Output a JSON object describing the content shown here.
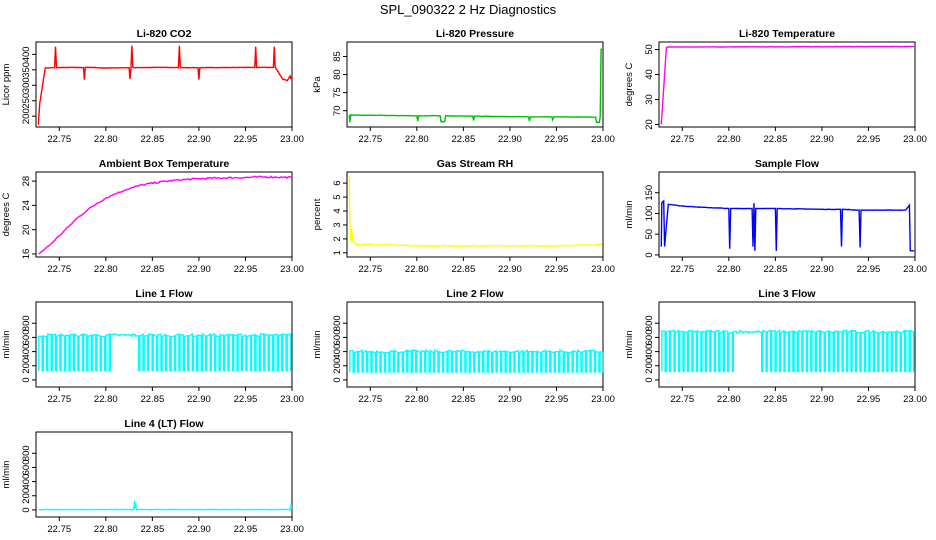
{
  "page_title": "SPL_090322  2 Hz Diagnostics",
  "colors": {
    "red": "#ff0000",
    "green": "#00c000",
    "magenta": "#ff00ff",
    "yellow": "#ffff00",
    "blue": "#0000ff",
    "cyan": "#00ffff",
    "axis": "#000000"
  },
  "chart_data": [
    {
      "type": "line",
      "title": "Li-820 CO2",
      "ylabel": "Licor ppm",
      "color": "#ff0000",
      "xlim": [
        22.725,
        23.0
      ],
      "ylim": [
        165,
        440
      ],
      "xticks": [
        "22.75",
        "22.80",
        "22.85",
        "22.90",
        "22.95",
        "23.00"
      ],
      "yticks": [
        "200",
        "250",
        "300",
        "350",
        "400"
      ],
      "series": [
        {
          "name": "CO2",
          "x": [
            22.7275,
            22.729,
            22.731,
            22.735,
            22.745,
            22.746,
            22.747,
            22.765,
            22.776,
            22.777,
            22.778,
            22.8,
            22.825,
            22.826,
            22.827,
            22.828,
            22.829,
            22.83,
            22.86,
            22.878,
            22.879,
            22.88,
            22.899,
            22.9,
            22.901,
            22.96,
            22.961,
            22.962,
            22.98,
            22.981,
            22.982,
            22.99,
            22.995,
            22.998,
            22.999
          ],
          "y": [
            172,
            240,
            280,
            356,
            357,
            425,
            357,
            358,
            357,
            318,
            358,
            356,
            357,
            320,
            358,
            428,
            358,
            357,
            358,
            357,
            428,
            357,
            357,
            318,
            357,
            358,
            425,
            358,
            358,
            425,
            358,
            320,
            315,
            330,
            320
          ]
        }
      ]
    },
    {
      "type": "line",
      "title": "Li-820 Pressure",
      "ylabel": "kPa",
      "color": "#00c000",
      "xlim": [
        22.725,
        23.0
      ],
      "ylim": [
        65.5,
        89
      ],
      "xticks": [
        "22.75",
        "22.80",
        "22.85",
        "22.90",
        "22.95",
        "23.00"
      ],
      "yticks": [
        "70",
        "75",
        "80",
        "85"
      ],
      "series": [
        {
          "name": "Pressure",
          "x": [
            22.7275,
            22.728,
            22.729,
            22.73,
            22.8,
            22.801,
            22.802,
            22.825,
            22.826,
            22.83,
            22.831,
            22.86,
            22.861,
            22.862,
            22.92,
            22.921,
            22.922,
            22.945,
            22.946,
            22.947,
            22.992,
            22.993,
            22.996,
            22.997,
            22.998,
            22.999
          ],
          "y": [
            68.8,
            66.8,
            68.9,
            68.8,
            68.6,
            67.2,
            68.6,
            68.6,
            67.0,
            67.0,
            68.6,
            68.5,
            67.3,
            68.5,
            68.3,
            67.2,
            68.3,
            68.3,
            67.5,
            68.3,
            68.2,
            66.8,
            66.8,
            68.3,
            87.0,
            87.0
          ]
        }
      ]
    },
    {
      "type": "line",
      "title": "Li-820 Temperature",
      "ylabel": "degrees C",
      "color": "#ff00ff",
      "xlim": [
        22.725,
        23.0
      ],
      "ylim": [
        19,
        53
      ],
      "xticks": [
        "22.75",
        "22.80",
        "22.85",
        "22.90",
        "22.95",
        "23.00"
      ],
      "yticks": [
        "20",
        "30",
        "40",
        "50"
      ],
      "series": [
        {
          "name": "Temperature",
          "x": [
            22.7275,
            22.733,
            22.735,
            22.999
          ],
          "y": [
            20,
            50.8,
            51,
            51.2
          ]
        }
      ]
    },
    {
      "type": "line",
      "title": "Ambient Box Temperature",
      "ylabel": "degrees C",
      "color": "#ff00ff",
      "xlim": [
        22.725,
        23.0
      ],
      "ylim": [
        15.5,
        29.5
      ],
      "xticks": [
        "22.75",
        "22.80",
        "22.85",
        "22.90",
        "22.95",
        "23.00"
      ],
      "yticks": [
        "16",
        "20",
        "24",
        "28"
      ],
      "series": [
        {
          "name": "Box Temperature",
          "x": [
            22.728,
            22.74,
            22.75,
            22.76,
            22.77,
            22.78,
            22.79,
            22.8,
            22.81,
            22.82,
            22.83,
            22.84,
            22.86,
            22.88,
            22.9,
            22.92,
            22.95,
            22.97,
            22.999
          ],
          "y": [
            16.0,
            17.5,
            19.0,
            20.5,
            22.0,
            23.2,
            24.3,
            25.2,
            25.9,
            26.5,
            27.0,
            27.4,
            27.9,
            28.2,
            28.4,
            28.5,
            28.6,
            28.7,
            28.6
          ]
        }
      ]
    },
    {
      "type": "line",
      "title": "Gas Stream RH",
      "ylabel": "percent",
      "color": "#ffff00",
      "xlim": [
        22.725,
        23.0
      ],
      "ylim": [
        0.7,
        6.8
      ],
      "xticks": [
        "22.75",
        "22.80",
        "22.85",
        "22.90",
        "22.95",
        "23.00"
      ],
      "yticks": [
        "1",
        "2",
        "3",
        "4",
        "5",
        "6"
      ],
      "series": [
        {
          "name": "RH",
          "x": [
            22.7275,
            22.728,
            22.729,
            22.73,
            22.731,
            22.735,
            22.75,
            22.8,
            22.85,
            22.9,
            22.95,
            22.999
          ],
          "y": [
            6.5,
            3.5,
            1.8,
            2.7,
            1.9,
            1.6,
            1.6,
            1.5,
            1.5,
            1.5,
            1.5,
            1.6
          ]
        }
      ]
    },
    {
      "type": "line",
      "title": "Sample Flow",
      "ylabel": "ml/min",
      "color": "#0000ff",
      "xlim": [
        22.725,
        23.0
      ],
      "ylim": [
        -5,
        200
      ],
      "xticks": [
        "22.75",
        "22.80",
        "22.85",
        "22.90",
        "22.95",
        "23.00"
      ],
      "yticks": [
        "0",
        "50",
        "100",
        "150"
      ],
      "series": [
        {
          "name": "Flow",
          "x": [
            22.7275,
            22.728,
            22.729,
            22.73,
            22.731,
            22.735,
            22.75,
            22.77,
            22.8,
            22.801,
            22.802,
            22.825,
            22.826,
            22.827,
            22.828,
            22.829,
            22.85,
            22.851,
            22.852,
            22.9,
            22.92,
            22.921,
            22.922,
            22.94,
            22.941,
            22.942,
            22.96,
            22.99,
            22.994,
            22.995,
            22.996,
            22.999
          ],
          "y": [
            20,
            125,
            128,
            130,
            20,
            122,
            118,
            115,
            112,
            15,
            112,
            112,
            20,
            125,
            10,
            112,
            112,
            10,
            112,
            110,
            110,
            20,
            110,
            108,
            18,
            108,
            108,
            108,
            120,
            10,
            10,
            10
          ]
        }
      ]
    },
    {
      "type": "line",
      "title": "Line 1 Flow",
      "ylabel": "ml/min",
      "color": "#00ffff",
      "xlim": [
        22.725,
        23.0
      ],
      "ylim": [
        -100,
        1100
      ],
      "xticks": [
        "22.75",
        "22.80",
        "22.85",
        "22.90",
        "22.95",
        "23.00"
      ],
      "yticks": [
        "0",
        "200",
        "400",
        "600",
        "800"
      ],
      "series": [
        {
          "name": "Line 1",
          "x_range": [
            22.728,
            22.995
          ],
          "high": 630,
          "low": 130,
          "gaps": [
            [
              22.8,
              22.83
            ]
          ]
        }
      ]
    },
    {
      "type": "line",
      "title": "Line 2 Flow",
      "ylabel": "ml/min",
      "color": "#00ffff",
      "xlim": [
        22.725,
        23.0
      ],
      "ylim": [
        -100,
        1100
      ],
      "xticks": [
        "22.75",
        "22.80",
        "22.85",
        "22.90",
        "22.95",
        "23.00"
      ],
      "yticks": [
        "0",
        "200",
        "400",
        "600",
        "800"
      ],
      "series": [
        {
          "name": "Line 2",
          "x_range": [
            22.728,
            22.999
          ],
          "high": 400,
          "low": 110
        }
      ]
    },
    {
      "type": "line",
      "title": "Line 3 Flow",
      "ylabel": "ml/min",
      "color": "#00ffff",
      "xlim": [
        22.725,
        23.0
      ],
      "ylim": [
        -100,
        1100
      ],
      "xticks": [
        "22.75",
        "22.80",
        "22.85",
        "22.90",
        "22.95",
        "23.00"
      ],
      "yticks": [
        "0",
        "200",
        "400",
        "600",
        "800"
      ],
      "series": [
        {
          "name": "Line 3",
          "x_range": [
            22.728,
            22.999
          ],
          "high": 680,
          "low": 120,
          "gaps": [
            [
              22.8,
              22.83
            ]
          ]
        }
      ]
    },
    {
      "type": "line",
      "title": "Line 4 (LT) Flow",
      "ylabel": "ml/min",
      "color": "#00ffff",
      "xlim": [
        22.725,
        23.0
      ],
      "ylim": [
        -100,
        1100
      ],
      "xticks": [
        "22.75",
        "22.80",
        "22.85",
        "22.90",
        "22.95",
        "23.00"
      ],
      "yticks": [
        "0",
        "200",
        "400",
        "600",
        "800"
      ],
      "series": [
        {
          "name": "Line 4",
          "x": [
            22.728,
            22.83,
            22.831,
            22.8315,
            22.832,
            22.833,
            22.998,
            22.999,
            22.9995
          ],
          "y": [
            5,
            5,
            130,
            20,
            90,
            5,
            5,
            80,
            5
          ]
        }
      ]
    }
  ]
}
